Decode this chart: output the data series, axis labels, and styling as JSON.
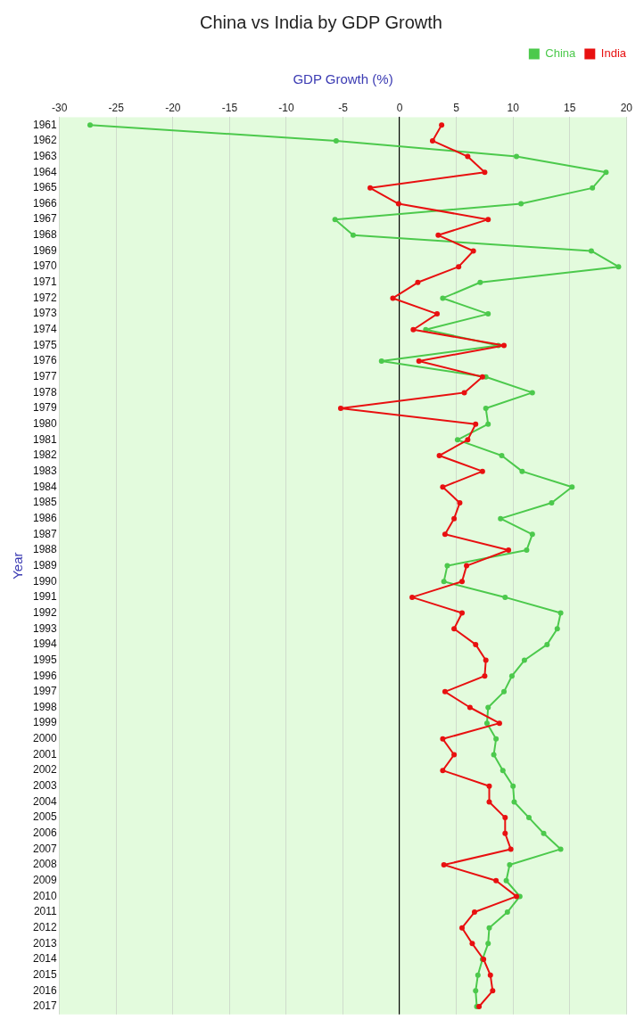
{
  "chart_data": {
    "type": "line",
    "title": "China vs India by GDP Growth",
    "xlabel": "GDP Growth (%)",
    "ylabel": "Year",
    "orientation": "horizontal",
    "categories": [
      "1961",
      "1962",
      "1963",
      "1964",
      "1965",
      "1966",
      "1967",
      "1968",
      "1969",
      "1970",
      "1971",
      "1972",
      "1973",
      "1974",
      "1975",
      "1976",
      "1977",
      "1978",
      "1979",
      "1980",
      "1981",
      "1982",
      "1983",
      "1984",
      "1985",
      "1986",
      "1987",
      "1988",
      "1989",
      "1990",
      "1991",
      "1992",
      "1993",
      "1994",
      "1995",
      "1996",
      "1997",
      "1998",
      "1999",
      "2000",
      "2001",
      "2002",
      "2003",
      "2004",
      "2005",
      "2006",
      "2007",
      "2008",
      "2009",
      "2010",
      "2011",
      "2012",
      "2013",
      "2014",
      "2015",
      "2016",
      "2017"
    ],
    "series": [
      {
        "name": "China",
        "color": "#4cc94c",
        "values": [
          -27.3,
          -5.6,
          10.3,
          18.2,
          17.0,
          10.7,
          -5.7,
          -4.1,
          16.9,
          19.3,
          7.1,
          3.8,
          7.8,
          2.3,
          8.7,
          -1.6,
          7.6,
          11.7,
          7.6,
          7.8,
          5.1,
          9.0,
          10.8,
          15.2,
          13.4,
          8.9,
          11.7,
          11.2,
          4.2,
          3.9,
          9.3,
          14.2,
          13.9,
          13.0,
          11.0,
          9.9,
          9.2,
          7.8,
          7.7,
          8.5,
          8.3,
          9.1,
          10.0,
          10.1,
          11.4,
          12.7,
          14.2,
          9.7,
          9.4,
          10.6,
          9.5,
          7.9,
          7.8,
          7.3,
          6.9,
          6.7,
          6.8
        ]
      },
      {
        "name": "India",
        "color": "#e81010",
        "values": [
          3.7,
          2.9,
          6.0,
          7.5,
          -2.6,
          -0.1,
          7.8,
          3.4,
          6.5,
          5.2,
          1.6,
          -0.6,
          3.3,
          1.2,
          9.2,
          1.7,
          7.3,
          5.7,
          -5.2,
          6.7,
          6.0,
          3.5,
          7.3,
          3.8,
          5.3,
          4.8,
          4.0,
          9.6,
          5.9,
          5.5,
          1.1,
          5.5,
          4.8,
          6.7,
          7.6,
          7.5,
          4.0,
          6.2,
          8.8,
          3.8,
          4.8,
          3.8,
          7.9,
          7.9,
          9.3,
          9.3,
          9.8,
          3.9,
          8.5,
          10.3,
          6.6,
          5.5,
          6.4,
          7.4,
          8.0,
          8.2,
          7.0
        ]
      }
    ],
    "xlim": [
      -30,
      20
    ],
    "xticks": [
      -30,
      -25,
      -20,
      -15,
      -10,
      -5,
      0,
      5,
      10,
      15,
      20
    ],
    "grid": "x",
    "legend": "top right",
    "marker": "circle",
    "line_style": "solid"
  }
}
